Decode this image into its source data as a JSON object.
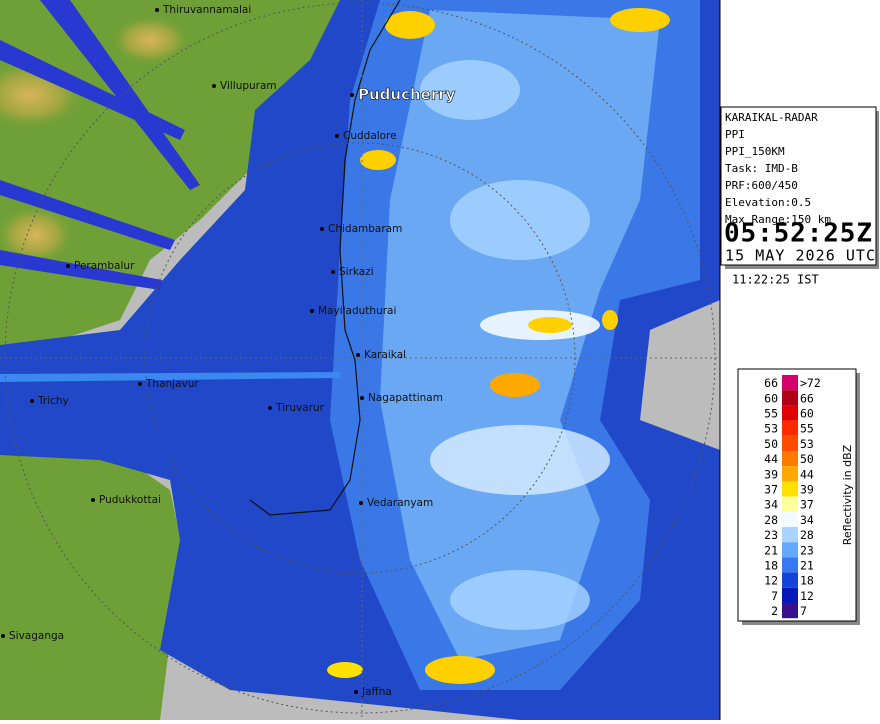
{
  "map": {
    "places": [
      {
        "name": "Thiruvannamalai"
      },
      {
        "name": "Villupuram"
      },
      {
        "name": "Puducherry"
      },
      {
        "name": "Cuddalore"
      },
      {
        "name": "Chidambaram"
      },
      {
        "name": "Sirkazi"
      },
      {
        "name": "Mayiladuthurai"
      },
      {
        "name": "Perambalur"
      },
      {
        "name": "Karaikal"
      },
      {
        "name": "Thanjavur"
      },
      {
        "name": "Trichy"
      },
      {
        "name": "Nagapattinam"
      },
      {
        "name": "Tiruvarur"
      },
      {
        "name": "Pudukkottai"
      },
      {
        "name": "Vedaranyam"
      },
      {
        "name": "Sivaganga"
      },
      {
        "name": "Jaffna"
      }
    ]
  },
  "info": {
    "lines": [
      "KARAIKAL-RADAR",
      "PPI",
      "PPI_150KM",
      "Task: IMD-B",
      "PRF:600/450",
      "Elevation:0.5",
      "Max Range:150 km"
    ],
    "time": "05:52:25Z",
    "date": "15 MAY 2026 UTC",
    "local_time": "11:22:25 IST"
  },
  "legend": {
    "title": "Reflectivity in dBZ",
    "rows": [
      {
        "low": "66",
        "high": ">72",
        "color": "#d4006e"
      },
      {
        "low": "60",
        "high": "66",
        "color": "#b00018"
      },
      {
        "low": "55",
        "high": "60",
        "color": "#e00000"
      },
      {
        "low": "53",
        "high": "55",
        "color": "#ff2a00"
      },
      {
        "low": "50",
        "high": "53",
        "color": "#ff4a00"
      },
      {
        "low": "44",
        "high": "50",
        "color": "#ff7a00"
      },
      {
        "low": "39",
        "high": "44",
        "color": "#ffa800"
      },
      {
        "low": "37",
        "high": "39",
        "color": "#ffe000"
      },
      {
        "low": "34",
        "high": "37",
        "color": "#ffffa0"
      },
      {
        "low": "28",
        "high": "34",
        "color": "#f4fbff"
      },
      {
        "low": "23",
        "high": "28",
        "color": "#a8d4ff"
      },
      {
        "low": "21",
        "high": "23",
        "color": "#64a8ff"
      },
      {
        "low": "18",
        "high": "21",
        "color": "#3878f0"
      },
      {
        "low": "12",
        "high": "18",
        "color": "#1444d8"
      },
      {
        "low": "7",
        "high": "12",
        "color": "#0818b8"
      },
      {
        "low": "2",
        "high": "7",
        "color": "#38108c"
      }
    ]
  }
}
